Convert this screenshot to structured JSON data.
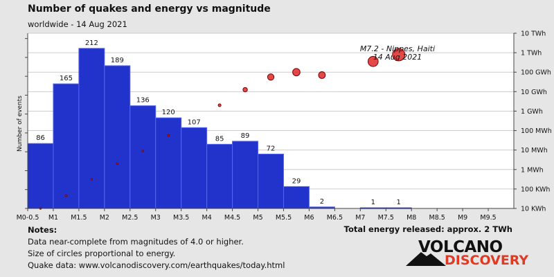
{
  "header": {
    "title": "Number of quakes and energy vs magnitude",
    "subtitle": "worldwide - 14 Aug 2021"
  },
  "chart_data": {
    "type": "bar",
    "ylabel": "Number of events",
    "categories": [
      "M0-0.5",
      "M0.5-1",
      "M1-1.5",
      "M1.5-2",
      "M2-2.5",
      "M2.5-3",
      "M3-3.5",
      "M3.5-4",
      "M4-4.5",
      "M4.5-5",
      "M5-5.5",
      "M5.5-6",
      "M6-6.5",
      "M6.5-7",
      "M7-7.5",
      "M7.5-8",
      "M8-8.5",
      "M8.5-9",
      "M9-9.5"
    ],
    "counts": [
      86,
      165,
      212,
      189,
      136,
      120,
      107,
      85,
      89,
      72,
      29,
      2,
      0,
      1,
      1,
      0,
      0,
      0,
      0
    ],
    "count_labels": [
      "86",
      "165",
      "212",
      "189",
      "136",
      "120",
      "107",
      "85",
      "89",
      "72",
      "29",
      "2",
      "",
      "1",
      "1",
      "",
      "",
      "",
      ""
    ],
    "x_ticks": [
      "M0-0.5",
      "M1",
      "M1.5",
      "M2",
      "M2.5",
      "M3",
      "M3.5",
      "M4",
      "M4.5",
      "M5",
      "M5.5",
      "M6",
      "M6.5",
      "M7",
      "M7.5",
      "M8",
      "M8.5",
      "M9",
      "M9.5"
    ],
    "energy_axis_labels": [
      "10 TWh",
      "1 TWh",
      "100 GWh",
      "10 GWh",
      "1 GWh",
      "100 MWh",
      "10 MWh",
      "1 MWh",
      "100 KWh",
      "10 KWh"
    ],
    "energy_decades_log10_kwh": [
      10,
      9,
      8,
      7,
      6,
      5,
      4,
      3,
      2,
      1
    ],
    "energy_points": [
      {
        "magnitude": 0.25,
        "log10_kwh": 1.0
      },
      {
        "magnitude": 0.75,
        "log10_kwh": 1.65
      },
      {
        "magnitude": 1.25,
        "log10_kwh": 2.5
      },
      {
        "magnitude": 1.75,
        "log10_kwh": 3.3
      },
      {
        "magnitude": 2.25,
        "log10_kwh": 3.95
      },
      {
        "magnitude": 2.75,
        "log10_kwh": 4.75
      },
      {
        "magnitude": 3.75,
        "log10_kwh": 6.3
      },
      {
        "magnitude": 4.25,
        "log10_kwh": 7.1
      },
      {
        "magnitude": 4.75,
        "log10_kwh": 7.75
      },
      {
        "magnitude": 5.25,
        "log10_kwh": 8.0
      },
      {
        "magnitude": 5.75,
        "log10_kwh": 7.85
      },
      {
        "magnitude": 6.75,
        "log10_kwh": 8.55
      },
      {
        "magnitude": 7.25,
        "log10_kwh": 8.9
      }
    ],
    "annotation": {
      "line1": "M7.2 - Nippes, Haiti",
      "line2": "14 Aug 2021"
    },
    "colors": {
      "bar": "#2233cc",
      "bar_edge": "#5566ee",
      "circle": "#e03030",
      "circle_edge": "#7a0000",
      "grid": "#cccccc",
      "background": "#ffffff"
    }
  },
  "footer": {
    "notes_head": "Notes:",
    "notes": [
      "Data near-complete from magnitudes of 4.0 or higher.",
      "Size of circles proportional to energy.",
      "Quake data: www.volcanodiscovery.com/earthquakes/today.html"
    ],
    "total_energy": "Total energy released: approx. 2 TWh"
  },
  "logo": {
    "line1": "VOLCANO",
    "line2": "DISCOVERY"
  }
}
